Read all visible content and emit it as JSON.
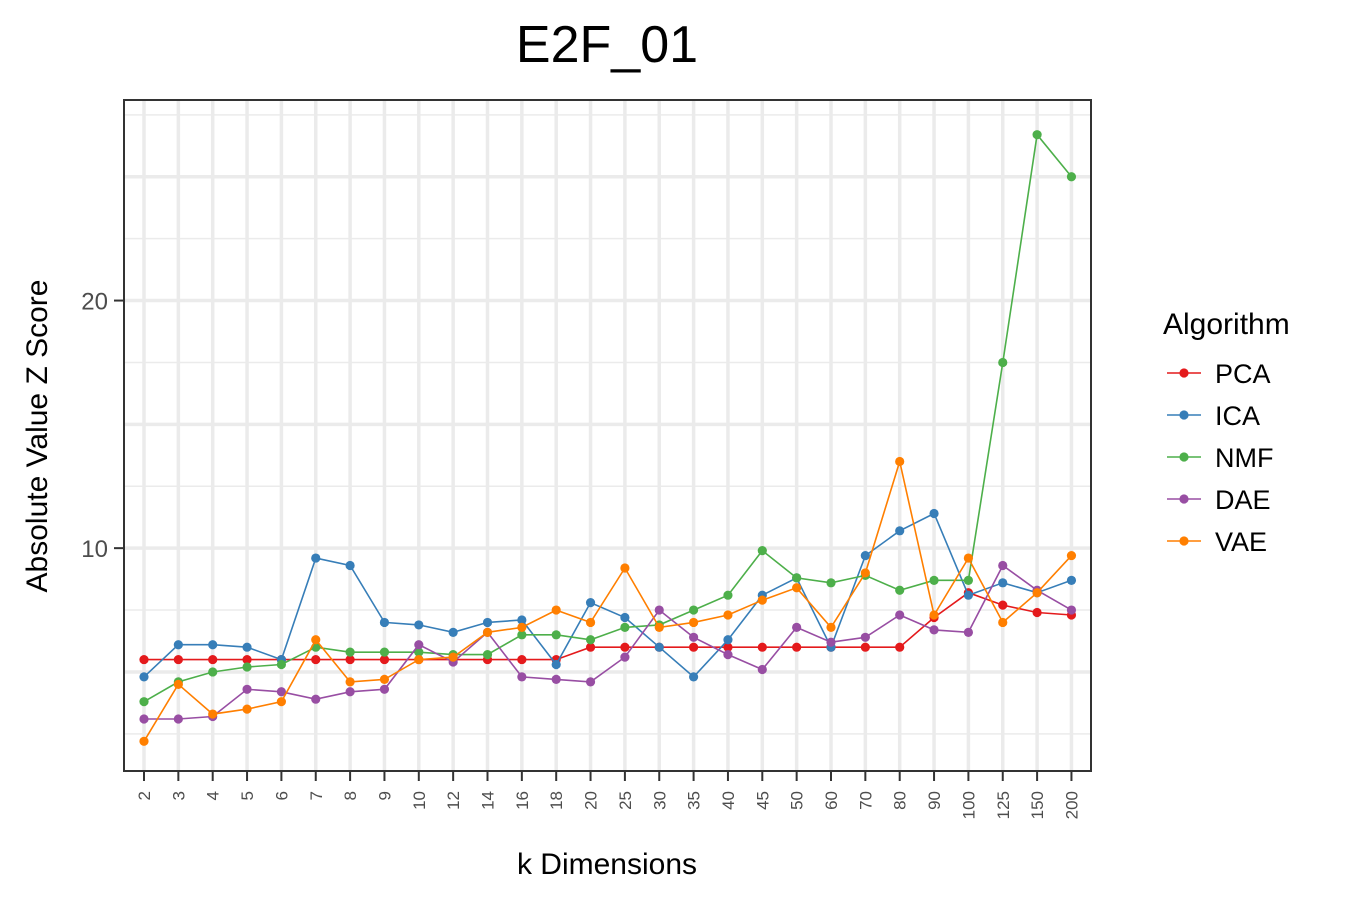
{
  "chart_data": {
    "type": "line",
    "title": "E2F_01",
    "xlabel": "k Dimensions",
    "ylabel": "Absolute Value Z Score",
    "categories": [
      "2",
      "3",
      "4",
      "5",
      "6",
      "7",
      "8",
      "9",
      "10",
      "12",
      "14",
      "16",
      "18",
      "20",
      "25",
      "30",
      "35",
      "40",
      "45",
      "50",
      "60",
      "70",
      "80",
      "90",
      "100",
      "125",
      "150",
      "200"
    ],
    "ylim": [
      1,
      28.1
    ],
    "yticks": [
      10,
      20
    ],
    "ytick_labels": [
      "10",
      "20"
    ],
    "grid": true,
    "legend": {
      "title": "Algorithm",
      "position": "right"
    },
    "series": [
      {
        "name": "PCA",
        "color": "#e41a1c",
        "values": [
          5.5,
          5.5,
          5.5,
          5.5,
          5.5,
          5.5,
          5.5,
          5.5,
          5.5,
          5.5,
          5.5,
          5.5,
          5.5,
          6.0,
          6.0,
          6.0,
          6.0,
          6.0,
          6.0,
          6.0,
          6.0,
          6.0,
          6.0,
          7.2,
          8.2,
          7.7,
          7.4,
          7.3
        ]
      },
      {
        "name": "ICA",
        "color": "#377eb8",
        "values": [
          4.8,
          6.1,
          6.1,
          6.0,
          5.5,
          9.6,
          9.3,
          7.0,
          6.9,
          6.6,
          7.0,
          7.1,
          5.3,
          7.8,
          7.2,
          6.0,
          4.8,
          6.3,
          8.1,
          8.8,
          6.0,
          9.7,
          10.7,
          11.4,
          8.1,
          8.6,
          8.2,
          8.7
        ]
      },
      {
        "name": "NMF",
        "color": "#4daf4a",
        "values": [
          3.8,
          4.6,
          5.0,
          5.2,
          5.3,
          6.0,
          5.8,
          5.8,
          5.8,
          5.7,
          5.7,
          6.5,
          6.5,
          6.3,
          6.8,
          6.9,
          7.5,
          8.1,
          9.9,
          8.8,
          8.6,
          8.9,
          8.3,
          8.7,
          8.7,
          17.5,
          26.7,
          25.0
        ]
      },
      {
        "name": "DAE",
        "color": "#984ea3",
        "values": [
          3.1,
          3.1,
          3.2,
          4.3,
          4.2,
          3.9,
          4.2,
          4.3,
          6.1,
          5.4,
          6.6,
          4.8,
          4.7,
          4.6,
          5.6,
          7.5,
          6.4,
          5.7,
          5.1,
          6.8,
          6.2,
          6.4,
          7.3,
          6.7,
          6.6,
          9.3,
          8.3,
          7.5
        ]
      },
      {
        "name": "VAE",
        "color": "#ff7f00",
        "values": [
          2.2,
          4.5,
          3.3,
          3.5,
          3.8,
          6.3,
          4.6,
          4.7,
          5.5,
          5.6,
          6.6,
          6.8,
          7.5,
          7.0,
          9.2,
          6.8,
          7.0,
          7.3,
          7.9,
          8.4,
          6.8,
          9.0,
          13.5,
          7.3,
          9.6,
          7.0,
          8.2,
          9.7
        ]
      }
    ]
  }
}
